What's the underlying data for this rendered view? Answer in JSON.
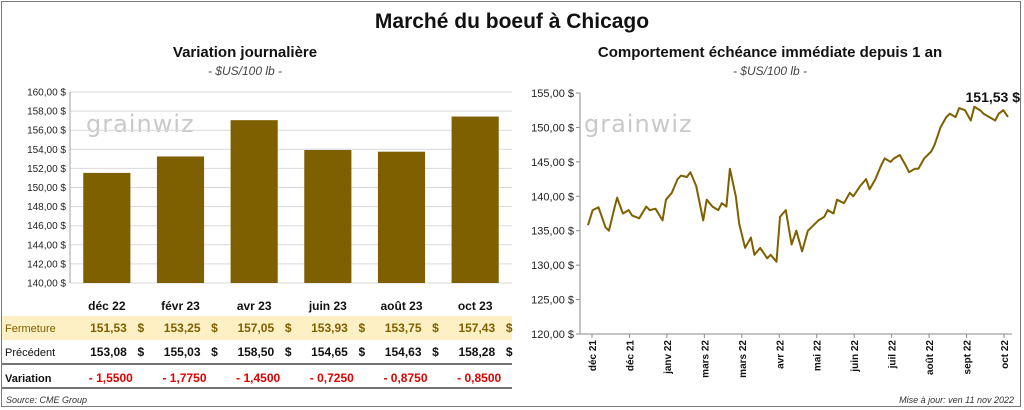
{
  "title": "Marché du boeuf à Chicago",
  "source": "Source: CME Group",
  "updated": "Mise à jour: ven 11 nov 2022",
  "watermark": "grainwiz",
  "colors": {
    "bar": "#7f6000",
    "line": "#7f6000",
    "highlight_row": "#fdf0c4",
    "negative": "#e00000",
    "axis": "#a0a0a0"
  },
  "chart_data": [
    {
      "type": "bar",
      "title": "Variation journalière",
      "subtitle": "- $US/100 lb -",
      "categories": [
        "déc 22",
        "févr 23",
        "avr 23",
        "juin 23",
        "août 23",
        "oct 23"
      ],
      "values": [
        151.53,
        153.25,
        157.05,
        153.93,
        153.75,
        157.43
      ],
      "ylim": [
        140,
        160
      ],
      "yticks": [
        "140,00 $",
        "142,00 $",
        "144,00 $",
        "146,00 $",
        "148,00 $",
        "150,00 $",
        "152,00 $",
        "154,00 $",
        "156,00 $",
        "158,00 $",
        "160,00 $"
      ],
      "grid": true
    },
    {
      "type": "line",
      "title": "Comportement  échéance immédiate depuis 1 an",
      "subtitle": "- $US/100 lb -",
      "last_label": "151,53 $",
      "ylim": [
        120,
        155
      ],
      "yticks": [
        "120,00 $",
        "125,00 $",
        "130,00 $",
        "135,00 $",
        "140,00 $",
        "145,00 $",
        "150,00 $",
        "155,00 $"
      ],
      "xticks": [
        "déc 21",
        "déc 21",
        "janv 22",
        "mars 22",
        "mars 22",
        "avr 22",
        "mai 22",
        "juin 22",
        "juil 22",
        "août 22",
        "sept 22",
        "oct 22"
      ],
      "x": [
        "2021-11-15",
        "2021-11-19",
        "2021-11-24",
        "2021-11-30",
        "2021-12-03",
        "2021-12-08",
        "2021-12-10",
        "2021-12-15",
        "2021-12-20",
        "2021-12-23",
        "2021-12-29",
        "2022-01-04",
        "2022-01-07",
        "2022-01-12",
        "2022-01-18",
        "2022-01-21",
        "2022-01-26",
        "2022-01-31",
        "2022-02-03",
        "2022-02-08",
        "2022-02-11",
        "2022-02-16",
        "2022-02-22",
        "2022-02-25",
        "2022-03-02",
        "2022-03-07",
        "2022-03-10",
        "2022-03-14",
        "2022-03-17",
        "2022-03-22",
        "2022-03-25",
        "2022-03-30",
        "2022-04-04",
        "2022-04-07",
        "2022-04-12",
        "2022-04-18",
        "2022-04-21",
        "2022-04-26",
        "2022-04-29",
        "2022-05-04",
        "2022-05-09",
        "2022-05-13",
        "2022-05-18",
        "2022-05-23",
        "2022-05-26",
        "2022-06-01",
        "2022-06-06",
        "2022-06-09",
        "2022-06-14",
        "2022-06-17",
        "2022-06-23",
        "2022-06-28",
        "2022-07-01",
        "2022-07-07",
        "2022-07-12",
        "2022-07-15",
        "2022-07-20",
        "2022-07-25",
        "2022-07-28",
        "2022-08-02",
        "2022-08-05",
        "2022-08-10",
        "2022-08-15",
        "2022-08-18",
        "2022-08-23",
        "2022-08-26",
        "2022-08-31",
        "2022-09-06",
        "2022-09-09",
        "2022-09-14",
        "2022-09-19",
        "2022-09-22",
        "2022-09-27",
        "2022-09-30",
        "2022-10-05",
        "2022-10-10",
        "2022-10-13",
        "2022-10-18",
        "2022-10-21",
        "2022-10-26",
        "2022-10-31",
        "2022-11-03",
        "2022-11-07",
        "2022-11-09",
        "2022-11-11"
      ],
      "values": [
        135.8,
        138.0,
        138.4,
        135.5,
        135.0,
        138.5,
        139.8,
        137.5,
        138.0,
        137.2,
        136.8,
        138.5,
        138.0,
        138.2,
        136.5,
        139.5,
        140.5,
        142.5,
        143.0,
        142.8,
        143.5,
        141.5,
        136.5,
        139.5,
        138.5,
        138.0,
        139.0,
        138.5,
        144.0,
        140.0,
        136.0,
        132.5,
        134.0,
        131.5,
        132.5,
        131.0,
        131.5,
        130.5,
        137.0,
        138.0,
        133.0,
        135.0,
        132.0,
        135.0,
        135.5,
        136.5,
        137.0,
        138.0,
        137.5,
        139.5,
        139.0,
        140.5,
        140.0,
        141.5,
        142.5,
        141.0,
        142.5,
        144.5,
        145.5,
        145.0,
        145.5,
        146.0,
        144.5,
        143.5,
        144.0,
        144.0,
        145.5,
        146.5,
        147.5,
        150.0,
        151.5,
        152.0,
        151.5,
        152.8,
        152.5,
        151.0,
        153.0,
        152.5,
        152.0,
        151.5,
        151.0,
        152.0,
        152.5,
        152.0,
        151.53
      ],
      "grid": false
    }
  ],
  "table": {
    "rows": [
      {
        "label": "Fermeture",
        "values": [
          "151,53",
          "153,25",
          "157,05",
          "153,93",
          "153,75",
          "157,43"
        ],
        "unit": "$",
        "highlight": true,
        "negative": false
      },
      {
        "label": "Précédent",
        "values": [
          "153,08",
          "155,03",
          "158,50",
          "154,65",
          "154,63",
          "158,28"
        ],
        "unit": "$",
        "highlight": false,
        "negative": false
      },
      {
        "label": "Variation",
        "values": [
          "- 1,5500",
          "- 1,7750",
          "- 1,4500",
          "- 0,7250",
          "- 0,8750",
          "- 0,8500"
        ],
        "unit": "",
        "highlight": false,
        "negative": true
      }
    ]
  }
}
